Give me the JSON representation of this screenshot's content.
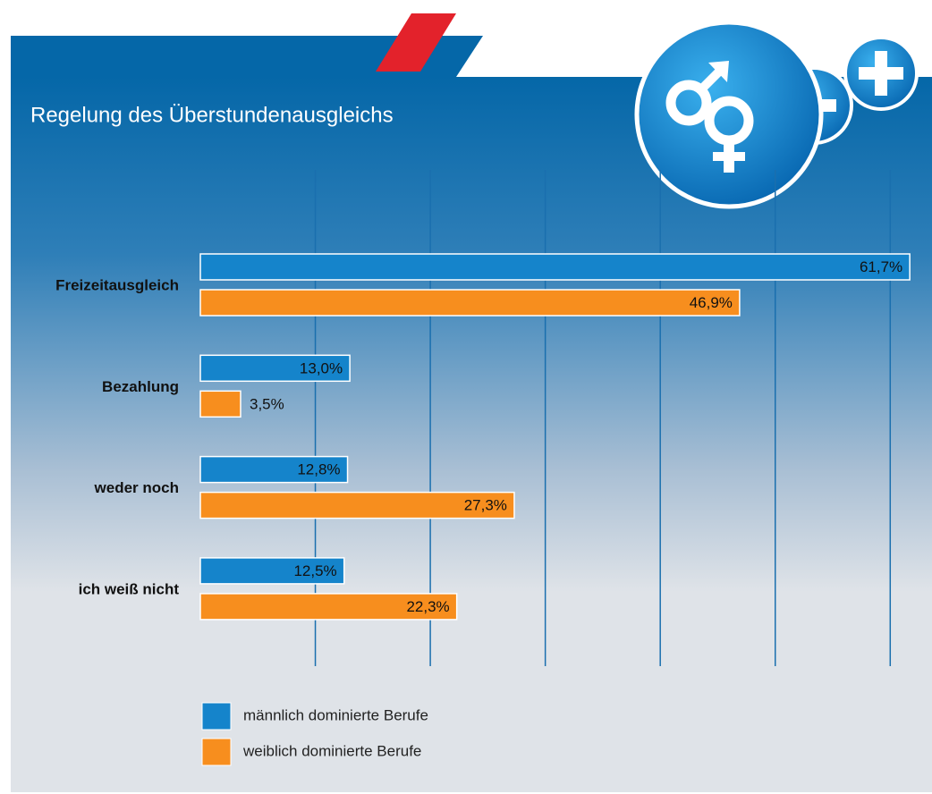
{
  "chart_data": {
    "type": "bar",
    "orientation": "horizontal",
    "title": "Regelung des Überstundenausgleichs",
    "categories": [
      "Freizeitausgleich",
      "Bezahlung",
      "weder noch",
      "ich weiß nicht"
    ],
    "series": [
      {
        "name": "männlich dominierte Berufe",
        "color": "#1584cb",
        "values": [
          61.7,
          13.0,
          12.8,
          12.5
        ],
        "value_labels": [
          "61,7%",
          "13,0%",
          "12,8%",
          "12,5%"
        ]
      },
      {
        "name": "weiblich dominierte Berufe",
        "color": "#f78e1e",
        "values": [
          46.9,
          3.5,
          27.3,
          22.3
        ],
        "value_labels": [
          "46,9%",
          "3,5%",
          "27,3%",
          "22,3%"
        ]
      }
    ],
    "xlim": [
      0,
      62
    ],
    "xticks": [
      10,
      20,
      30,
      40,
      50,
      60
    ],
    "grid": true,
    "legend": "bottom"
  }
}
